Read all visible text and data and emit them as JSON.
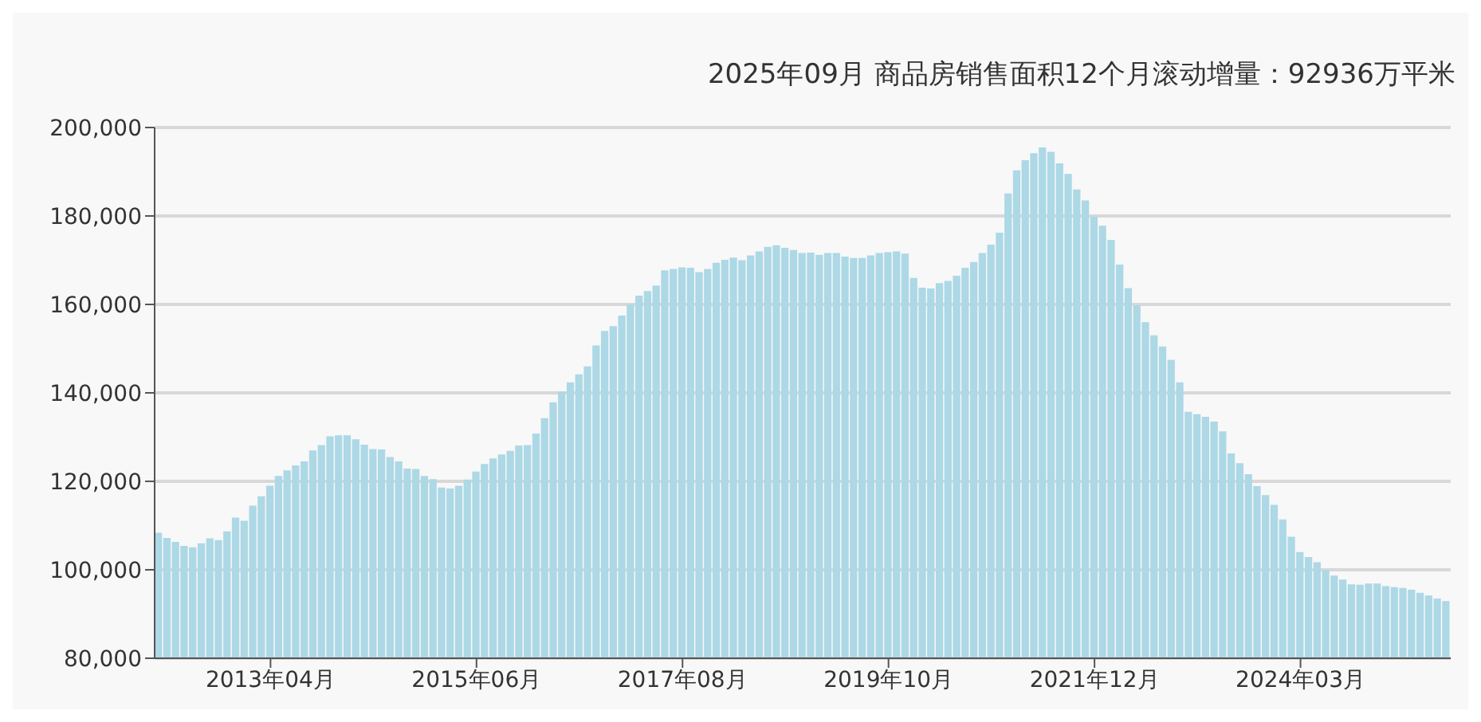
{
  "chart_data": {
    "type": "bar",
    "title": "2025年09月 商品房销售面积12个月滚动增量：92936万平米",
    "categories": [
      null,
      null,
      null,
      null,
      null,
      null,
      null,
      null,
      null,
      null,
      null,
      null,
      null,
      "2013年04月",
      null,
      null,
      null,
      null,
      null,
      null,
      null,
      null,
      null,
      null,
      null,
      null,
      null,
      null,
      null,
      null,
      null,
      null,
      null,
      null,
      null,
      null,
      null,
      "2015年06月",
      null,
      null,
      null,
      null,
      null,
      null,
      null,
      null,
      null,
      null,
      null,
      null,
      null,
      null,
      null,
      null,
      null,
      null,
      null,
      null,
      null,
      null,
      null,
      "2017年08月",
      null,
      null,
      null,
      null,
      null,
      null,
      null,
      null,
      null,
      null,
      null,
      null,
      null,
      null,
      null,
      null,
      null,
      null,
      null,
      null,
      null,
      null,
      null,
      "2019年10月",
      null,
      null,
      null,
      null,
      null,
      null,
      null,
      null,
      null,
      null,
      null,
      null,
      null,
      null,
      null,
      null,
      null,
      null,
      null,
      null,
      null,
      null,
      null,
      "2021年12月",
      null,
      null,
      null,
      null,
      null,
      null,
      null,
      null,
      null,
      null,
      null,
      null,
      null,
      null,
      null,
      null,
      null,
      null,
      null,
      null,
      null,
      null,
      null,
      "2024年03月",
      null,
      null,
      null,
      null,
      null,
      null,
      null,
      null,
      null,
      null,
      null,
      null,
      null,
      null,
      null,
      null,
      null
    ],
    "values": [
      108400,
      107200,
      106300,
      105400,
      105100,
      106000,
      107100,
      106700,
      108700,
      111800,
      111100,
      114500,
      116600,
      119000,
      121200,
      122500,
      123600,
      124500,
      127000,
      128200,
      130200,
      130400,
      130400,
      129500,
      128300,
      127300,
      127200,
      125500,
      124500,
      122900,
      122800,
      121200,
      120500,
      118600,
      118400,
      119000,
      120400,
      122200,
      123900,
      125200,
      126100,
      126900,
      128100,
      128200,
      130800,
      134300,
      137900,
      140300,
      142400,
      144200,
      146000,
      150700,
      154000,
      155100,
      157500,
      160000,
      162000,
      163000,
      164300,
      167700,
      168000,
      168400,
      168300,
      167300,
      168000,
      169400,
      170100,
      170600,
      170000,
      171100,
      172000,
      173000,
      173400,
      172800,
      172300,
      171600,
      171700,
      171200,
      171600,
      171600,
      170800,
      170500,
      170500,
      171100,
      171600,
      171800,
      172000,
      171500,
      166000,
      163800,
      163600,
      164800,
      165300,
      166500,
      168300,
      169600,
      171600,
      173500,
      176200,
      185100,
      190300,
      192600,
      194200,
      195500,
      194500,
      191900,
      189500,
      186000,
      183500,
      179800,
      177800,
      174600,
      169000,
      163700,
      159800,
      156000,
      153000,
      150500,
      147500,
      142400,
      135700,
      135200,
      134600,
      133500,
      131300,
      126300,
      124100,
      121600,
      118900,
      116900,
      114700,
      111400,
      107500,
      104000,
      102900,
      101700,
      99900,
      98700,
      97800,
      96700,
      96600,
      96900,
      96900,
      96300,
      96100,
      95900,
      95500,
      94800,
      94200,
      93500,
      92936
    ],
    "color": "#add8e6",
    "ylim": [
      80000,
      200000
    ],
    "yticks": [
      {
        "value": 80000,
        "label": "80,000"
      },
      {
        "value": 100000,
        "label": "100,000"
      },
      {
        "value": 120000,
        "label": "120,000"
      },
      {
        "value": 140000,
        "label": "140,000"
      },
      {
        "value": 160000,
        "label": "160,000"
      },
      {
        "value": 180000,
        "label": "180,000"
      },
      {
        "value": 200000,
        "label": "200,000"
      }
    ],
    "grid": "y"
  }
}
